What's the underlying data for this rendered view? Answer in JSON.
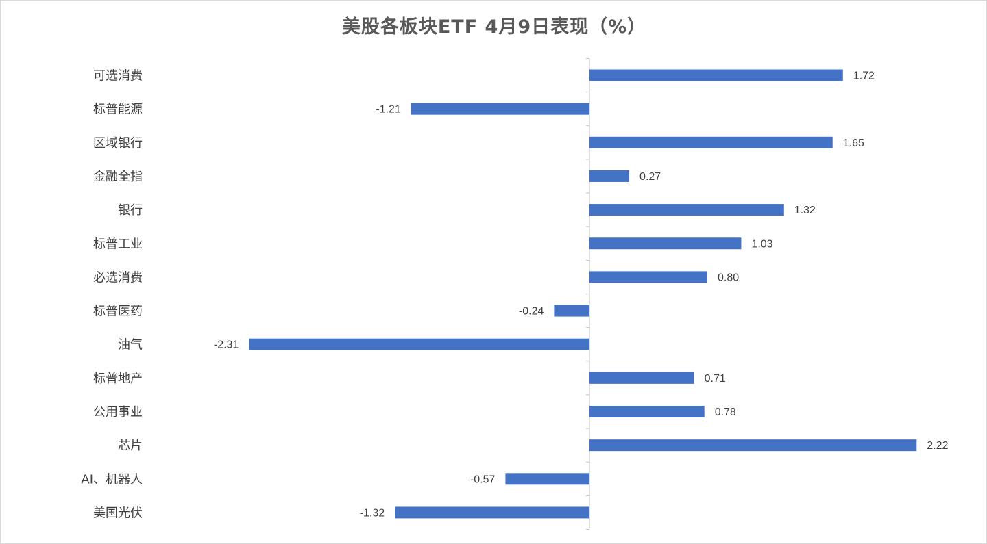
{
  "chart_data": {
    "type": "bar",
    "orientation": "horizontal",
    "title": "美股各板块ETF  4月9日表现（%）",
    "categories": [
      "可选消费",
      "标普能源",
      "区域银行",
      "金融全指",
      "银行",
      "标普工业",
      "必选消费",
      "标普医药",
      "油气",
      "标普地产",
      "公用事业",
      "芯片",
      "AI、机器人",
      "美国光伏"
    ],
    "values": [
      1.72,
      -1.21,
      1.65,
      0.27,
      1.32,
      1.03,
      0.8,
      -0.24,
      -2.31,
      0.71,
      0.78,
      2.22,
      -0.57,
      -1.32
    ],
    "value_labels": [
      "1.72",
      "-1.21",
      "1.65",
      "0.27",
      "1.32",
      "1.03",
      "0.80",
      "-0.24",
      "-2.31",
      "0.71",
      "0.78",
      "2.22",
      "-0.57",
      "-1.32"
    ],
    "xlim": [
      -4,
      2.5
    ],
    "bar_color": "#4472C4",
    "axis_color": "#BFBFBF",
    "grid": false,
    "legend": "none",
    "xlabel": "",
    "ylabel": ""
  }
}
